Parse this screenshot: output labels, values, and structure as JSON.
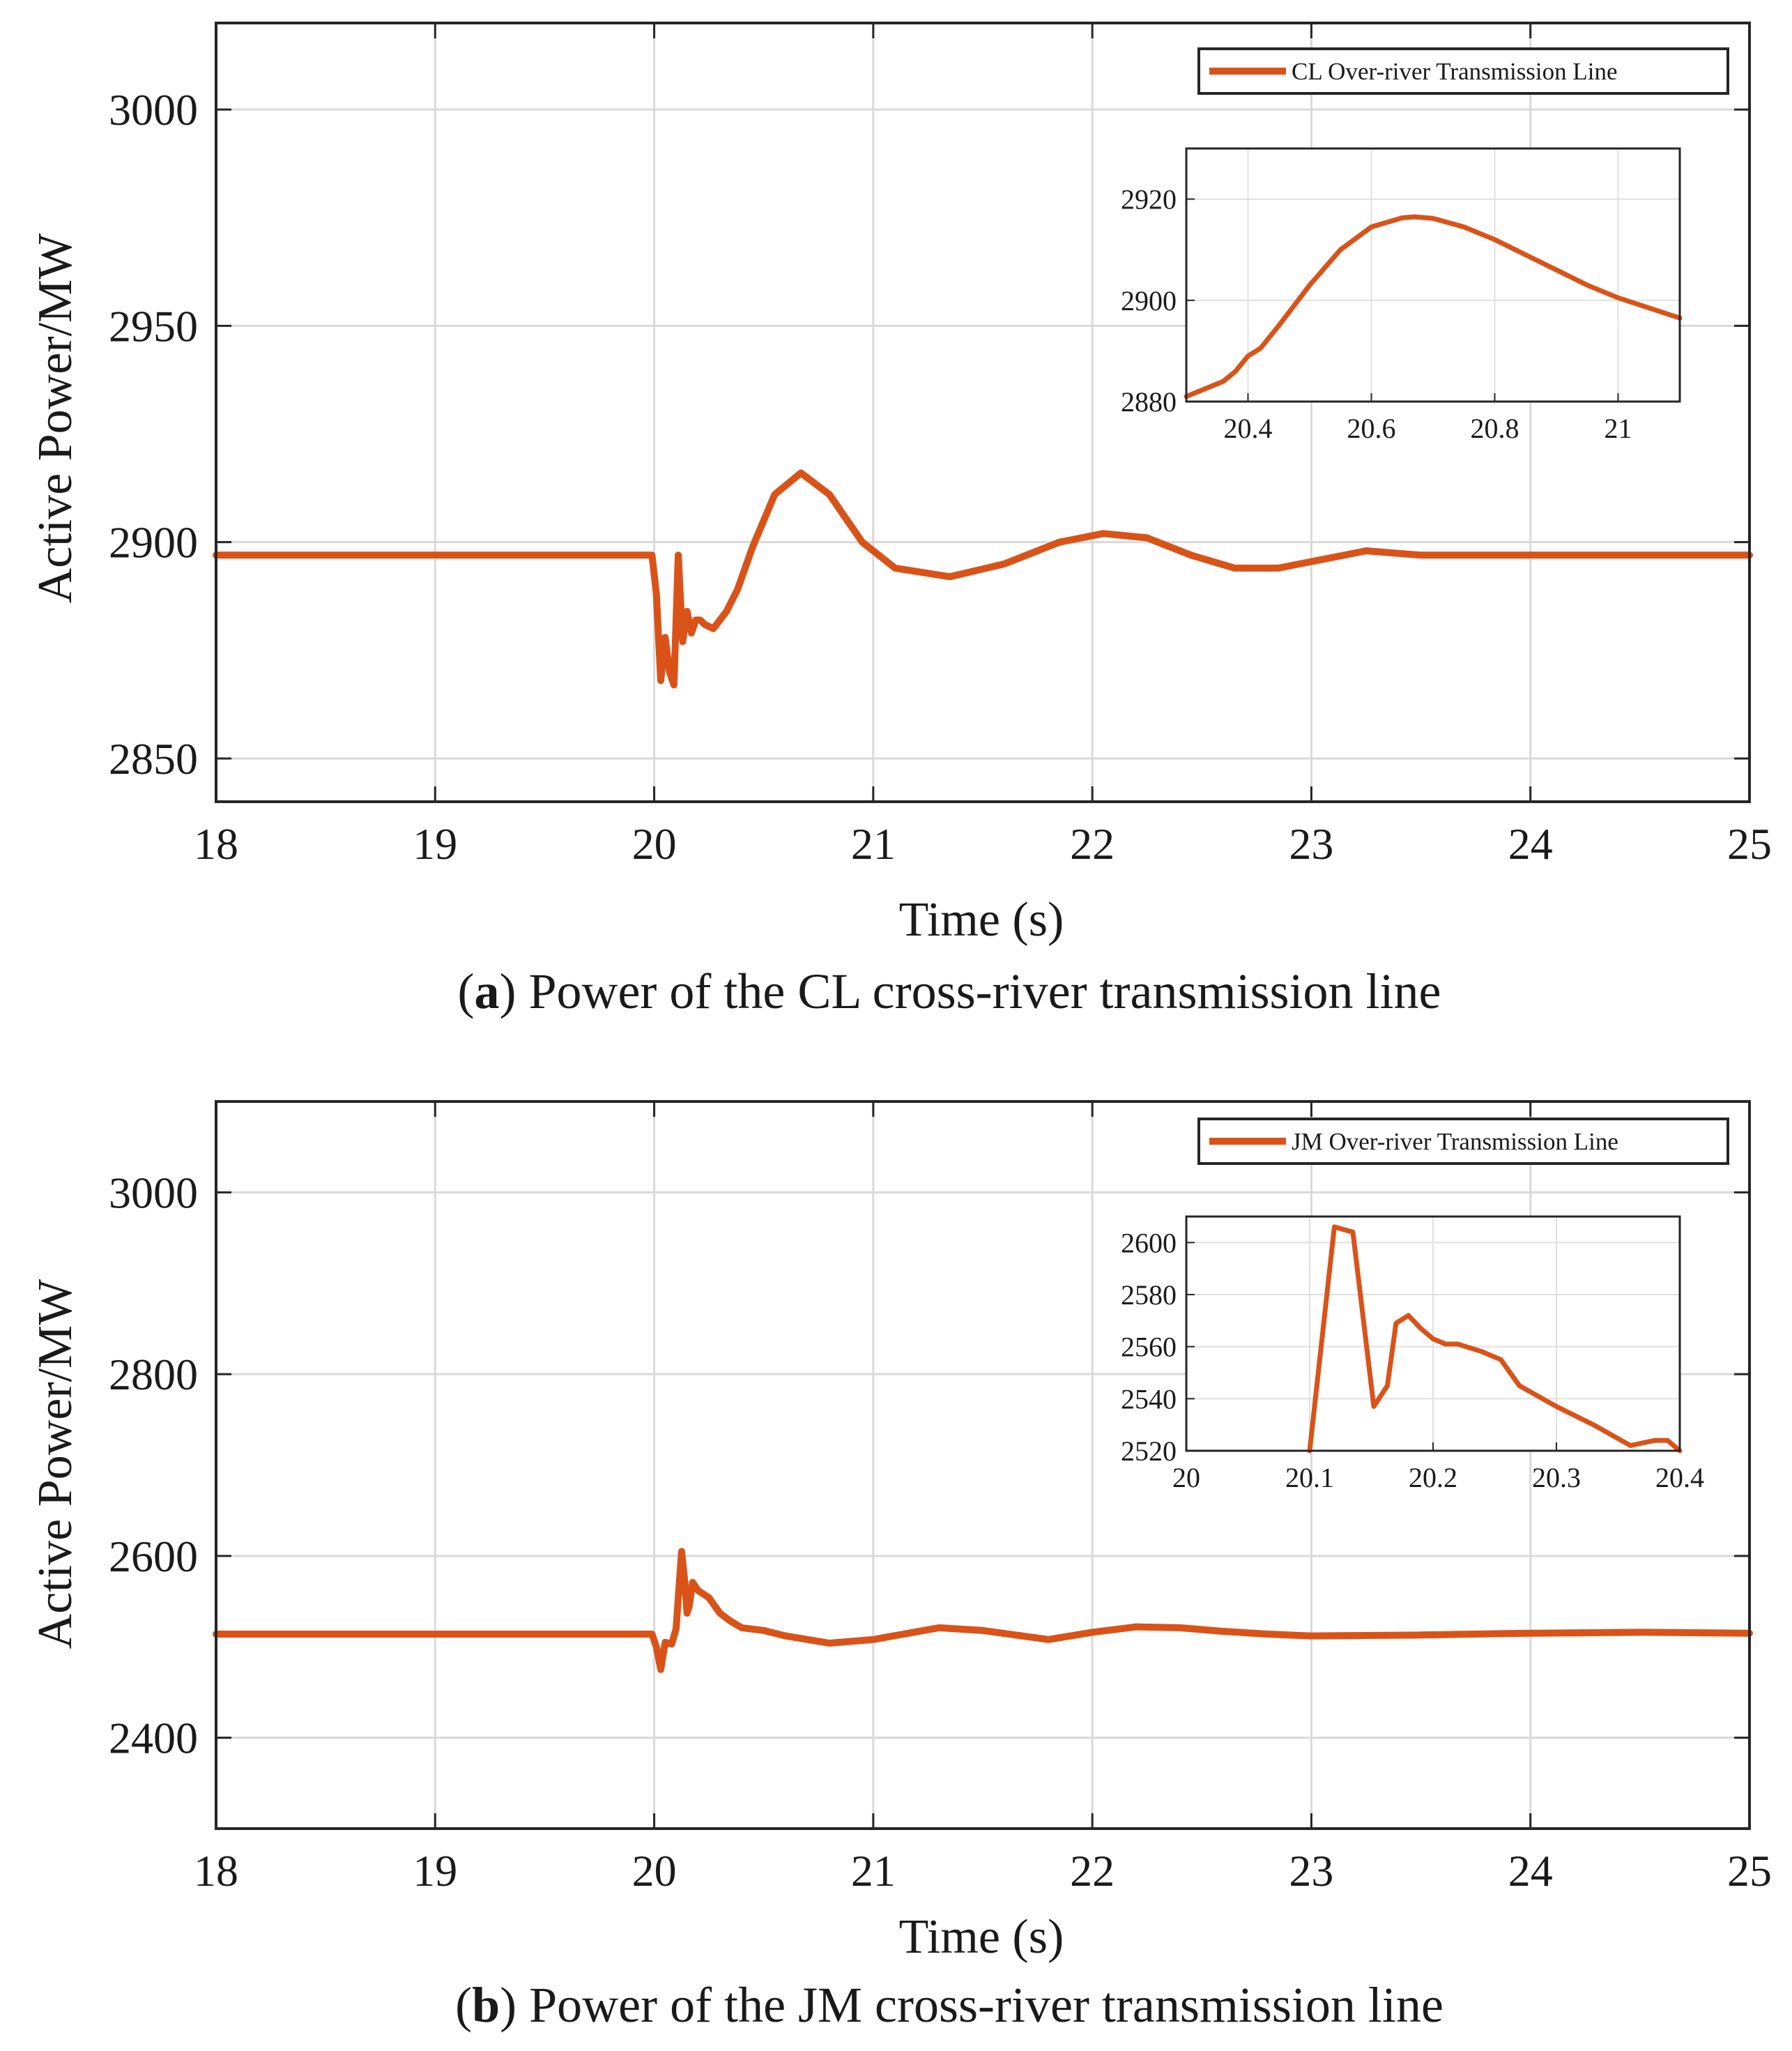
{
  "colors": {
    "series": "#d95319"
  },
  "chart_data": [
    {
      "type": "line",
      "caption_label": "a",
      "caption_text": " Power of the CL cross-river transmission line",
      "xlabel": "Time (s)",
      "ylabel": "Active Power/MW",
      "xlim": [
        18,
        25
      ],
      "ylim": [
        2840,
        3020
      ],
      "xticks": [
        "18",
        "19",
        "20",
        "21",
        "22",
        "23",
        "24",
        "25"
      ],
      "yticks": [
        "2850",
        "2900",
        "2950",
        "3000"
      ],
      "grid": true,
      "legend_position": "top-right",
      "series": [
        {
          "name": "CL Over-river Transmission Line",
          "x": [
            18,
            19,
            19.99,
            20.01,
            20.03,
            20.05,
            20.07,
            20.09,
            20.11,
            20.13,
            20.15,
            20.17,
            20.19,
            20.21,
            20.23,
            20.27,
            20.33,
            20.38,
            20.45,
            20.55,
            20.67,
            20.8,
            20.95,
            21.1,
            21.35,
            21.6,
            21.85,
            22.05,
            22.25,
            22.45,
            22.65,
            22.85,
            23.05,
            23.25,
            23.5,
            23.75,
            24,
            24.25,
            24.5,
            24.75,
            25
          ],
          "y": [
            2897,
            2897,
            2897,
            2888,
            2868,
            2878,
            2870,
            2867,
            2897,
            2877,
            2884,
            2879,
            2882,
            2882,
            2881,
            2880,
            2884,
            2889,
            2899,
            2911,
            2916,
            2911,
            2900,
            2894,
            2892,
            2895,
            2900,
            2902,
            2901,
            2897,
            2894,
            2894,
            2896,
            2898,
            2897,
            2897,
            2897,
            2897,
            2897,
            2897,
            2897
          ]
        }
      ],
      "inset": {
        "xlim": [
          20.3,
          21.1
        ],
        "ylim": [
          2880,
          2930
        ],
        "xticks": [
          20.4,
          20.6,
          20.8,
          21
        ],
        "xtick_labels": [
          "20.4",
          "20.6",
          "20.8",
          "21"
        ],
        "yticks": [
          2880,
          2900,
          2920
        ],
        "ytick_labels": [
          "2880",
          "2900",
          "2920"
        ],
        "x": [
          20.3,
          20.33,
          20.36,
          20.38,
          20.4,
          20.42,
          20.45,
          20.5,
          20.55,
          20.6,
          20.65,
          20.67,
          20.7,
          20.75,
          20.8,
          20.85,
          20.9,
          20.95,
          21,
          21.05,
          21.1
        ],
        "y": [
          2881,
          2882.5,
          2884,
          2886,
          2889,
          2890.5,
          2895,
          2903,
          2910,
          2914.5,
          2916.3,
          2916.5,
          2916.2,
          2914.5,
          2912,
          2909,
          2906,
          2903,
          2900.5,
          2898.5,
          2896.5
        ]
      }
    },
    {
      "type": "line",
      "caption_label": "b",
      "caption_text": " Power of the JM cross-river transmission line",
      "xlabel": "Time (s)",
      "ylabel": "Active Power/MW",
      "xlim": [
        18,
        25
      ],
      "ylim": [
        2300,
        3100
      ],
      "xticks": [
        "18",
        "19",
        "20",
        "21",
        "22",
        "23",
        "24",
        "25"
      ],
      "yticks": [
        "2400",
        "2600",
        "2800",
        "3000"
      ],
      "grid": true,
      "legend_position": "top-right",
      "series": [
        {
          "name": "JM Over-river Transmission Line",
          "x": [
            18,
            19,
            19.99,
            20.01,
            20.03,
            20.05,
            20.08,
            20.1,
            20.125,
            20.14,
            20.15,
            20.16,
            20.175,
            20.2,
            20.25,
            20.3,
            20.35,
            20.4,
            20.5,
            20.6,
            20.8,
            21,
            21.3,
            21.5,
            21.8,
            22,
            22.2,
            22.4,
            22.6,
            22.8,
            23,
            23.5,
            24,
            24.5,
            25
          ],
          "y": [
            2514,
            2514,
            2514,
            2500,
            2475,
            2505,
            2503,
            2520,
            2605,
            2570,
            2537,
            2545,
            2571,
            2562,
            2554,
            2537,
            2528,
            2521,
            2518,
            2512,
            2504,
            2508,
            2521,
            2518,
            2508,
            2516,
            2522,
            2521,
            2517,
            2514,
            2512,
            2513,
            2515,
            2516,
            2515
          ]
        }
      ],
      "inset": {
        "xlim": [
          20,
          20.4
        ],
        "ylim": [
          2520,
          2610
        ],
        "xticks": [
          20,
          20.1,
          20.2,
          20.3,
          20.4
        ],
        "xtick_labels": [
          "20",
          "20.1",
          "20.2",
          "20.3",
          "20.4"
        ],
        "yticks": [
          2520,
          2540,
          2560,
          2580,
          2600
        ],
        "ytick_labels": [
          "2520",
          "2540",
          "2560",
          "2580",
          "2600"
        ],
        "x": [
          20.1,
          20.12,
          20.135,
          20.152,
          20.163,
          20.17,
          20.18,
          20.19,
          20.2,
          20.21,
          20.22,
          20.24,
          20.255,
          20.27,
          20.3,
          20.33,
          20.36,
          20.38,
          20.39,
          20.4
        ],
        "y": [
          2520,
          2606,
          2604,
          2537,
          2545,
          2569,
          2572,
          2567,
          2563,
          2561,
          2561,
          2558,
          2555,
          2545,
          2537,
          2530,
          2522,
          2524,
          2524,
          2520
        ]
      }
    }
  ]
}
